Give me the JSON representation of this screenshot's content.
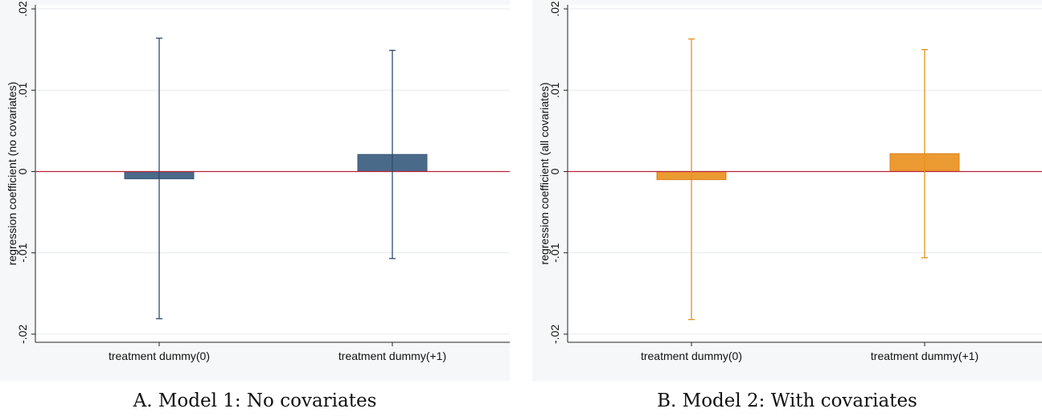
{
  "chart_data": [
    {
      "type": "bar",
      "caption": "A. Model 1: No covariates",
      "ylabel": "regression coefficient (no covariates)",
      "categories": [
        "treatment dummy(0)",
        "treatment dummy(+1)"
      ],
      "values": [
        -0.0009,
        0.0021
      ],
      "ci_low": [
        -0.0181,
        -0.0107
      ],
      "ci_high": [
        0.0164,
        0.0149
      ],
      "ylim": [
        -0.021,
        0.0205
      ],
      "yticks": [
        -0.02,
        -0.01,
        0,
        0.01,
        0.02
      ],
      "ytick_labels": [
        "-.02",
        "-.01",
        "0",
        ".01",
        ".02"
      ],
      "grid": true,
      "bar_color": "#4a6a8a",
      "bar_edge_color": "#3d5a78",
      "errorbar_color": "#2f4c6a",
      "zero_line_color": "#b8243a"
    },
    {
      "type": "bar",
      "caption": "B. Model 2: With covariates",
      "ylabel": "regression coefficient (all covariates)",
      "categories": [
        "treatment dummy(0)",
        "treatment dummy(+1)"
      ],
      "values": [
        -0.001,
        0.0022
      ],
      "ci_low": [
        -0.0182,
        -0.0106
      ],
      "ci_high": [
        0.0163,
        0.015
      ],
      "ylim": [
        -0.021,
        0.0205
      ],
      "yticks": [
        -0.02,
        -0.01,
        0,
        0.01,
        0.02
      ],
      "ytick_labels": [
        "-.02",
        "-.01",
        "0",
        ".01",
        ".02"
      ],
      "grid": true,
      "bar_color": "#ec9a32",
      "bar_edge_color": "#d98420",
      "errorbar_color": "#e8901e",
      "zero_line_color": "#b8243a"
    }
  ]
}
